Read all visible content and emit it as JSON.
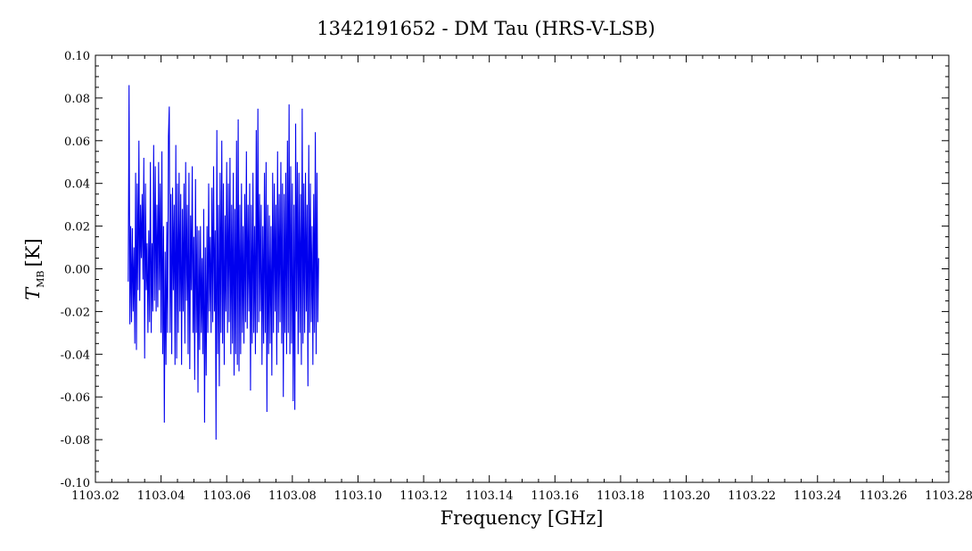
{
  "chart_data": {
    "type": "line",
    "title": "1342191652 - DM Tau (HRS-V-LSB)",
    "xlabel": "Frequency [GHz]",
    "ylabel_main": "T",
    "ylabel_sub": "MB",
    "ylabel_unit": "[K]",
    "xlim": [
      1103.02,
      1103.28
    ],
    "ylim": [
      -0.1,
      0.1
    ],
    "x_ticks": [
      "1103.02",
      "1103.04",
      "1103.06",
      "1103.08",
      "1103.10",
      "1103.12",
      "1103.14",
      "1103.16",
      "1103.18",
      "1103.20",
      "1103.22",
      "1103.24",
      "1103.26",
      "1103.28"
    ],
    "x_tick_values": [
      1103.02,
      1103.04,
      1103.06,
      1103.08,
      1103.1,
      1103.12,
      1103.14,
      1103.16,
      1103.18,
      1103.2,
      1103.22,
      1103.24,
      1103.26,
      1103.28
    ],
    "y_ticks": [
      "0.10",
      "0.08",
      "0.06",
      "0.04",
      "0.02",
      "0.00",
      "-0.02",
      "-0.04",
      "-0.06",
      "-0.08",
      "-0.10"
    ],
    "y_tick_values": [
      0.1,
      0.08,
      0.06,
      0.04,
      0.02,
      0.0,
      -0.02,
      -0.04,
      -0.06,
      -0.08,
      -0.1
    ],
    "grid": false,
    "series_color": "#0000ee",
    "series": [
      {
        "x_start": 1103.03,
        "x_step": 0.00025,
        "values": [
          -0.006,
          0.086,
          -0.026,
          0.02,
          -0.025,
          0.019,
          -0.02,
          0.01,
          -0.035,
          0.045,
          -0.038,
          0.04,
          -0.01,
          0.06,
          -0.015,
          0.03,
          0.005,
          0.035,
          -0.005,
          0.052,
          -0.042,
          0.04,
          -0.01,
          0.012,
          -0.03,
          0.018,
          -0.025,
          0.05,
          -0.03,
          0.012,
          -0.02,
          0.058,
          -0.015,
          0.048,
          -0.02,
          0.03,
          -0.018,
          0.05,
          -0.01,
          0.04,
          -0.03,
          0.055,
          -0.04,
          0.02,
          -0.072,
          0.008,
          -0.045,
          0.022,
          -0.03,
          0.062,
          0.076,
          -0.03,
          0.035,
          -0.04,
          0.038,
          -0.01,
          0.03,
          -0.045,
          0.058,
          -0.042,
          0.04,
          -0.03,
          0.045,
          -0.02,
          0.035,
          -0.045,
          0.028,
          -0.02,
          0.04,
          -0.035,
          0.05,
          -0.015,
          0.03,
          -0.04,
          0.045,
          -0.047,
          0.025,
          -0.01,
          0.048,
          -0.03,
          0.015,
          -0.052,
          0.042,
          -0.03,
          0.02,
          -0.058,
          0.018,
          -0.038,
          0.02,
          -0.03,
          0.005,
          -0.04,
          0.028,
          -0.072,
          0.01,
          -0.05,
          0.02,
          -0.03,
          0.04,
          -0.02,
          0.015,
          -0.03,
          0.038,
          -0.025,
          0.048,
          -0.02,
          0.018,
          -0.08,
          0.065,
          -0.04,
          0.03,
          -0.055,
          0.045,
          -0.03,
          0.06,
          -0.035,
          0.04,
          -0.045,
          0.025,
          -0.02,
          0.05,
          -0.03,
          0.04,
          -0.025,
          0.052,
          -0.04,
          0.03,
          -0.035,
          0.045,
          -0.05,
          0.028,
          -0.04,
          0.06,
          -0.045,
          0.07,
          -0.048,
          0.03,
          -0.04,
          0.04,
          -0.03,
          0.02,
          -0.035,
          0.035,
          -0.025,
          0.055,
          -0.028,
          0.03,
          -0.02,
          0.04,
          -0.057,
          0.03,
          -0.035,
          0.045,
          -0.03,
          0.02,
          -0.04,
          0.065,
          -0.03,
          0.075,
          -0.025,
          0.035,
          -0.02,
          0.03,
          -0.045,
          0.02,
          -0.035,
          0.045,
          -0.03,
          0.05,
          -0.067,
          0.03,
          -0.04,
          0.025,
          -0.035,
          0.02,
          -0.05,
          0.045,
          -0.03,
          0.04,
          -0.02,
          0.03,
          -0.045,
          0.055,
          -0.03,
          0.035,
          -0.025,
          0.05,
          -0.035,
          0.04,
          -0.06,
          0.035,
          -0.03,
          0.045,
          -0.04,
          0.06,
          -0.03,
          0.077,
          -0.04,
          0.048,
          -0.035,
          0.04,
          -0.062,
          0.03,
          -0.066,
          0.068,
          -0.02,
          0.05,
          -0.04,
          0.045,
          -0.03,
          0.035,
          -0.045,
          0.075,
          -0.035,
          0.04,
          -0.03,
          0.045,
          -0.02,
          0.03,
          -0.055,
          0.058,
          -0.03,
          0.04,
          -0.025,
          0.02,
          -0.045,
          0.035,
          -0.03,
          0.064,
          -0.04,
          0.045,
          -0.025,
          0.005
        ]
      }
    ]
  }
}
